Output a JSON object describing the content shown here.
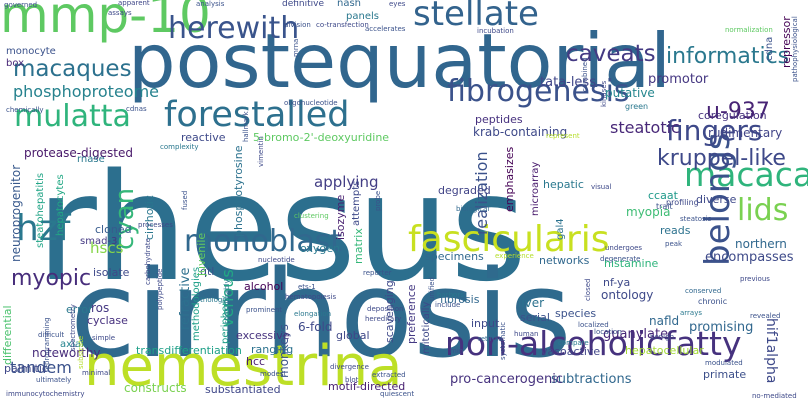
{
  "words": [
    {
      "text": "rhesus",
      "color": "#2c6f8e"
    },
    {
      "text": "cirrhosis",
      "color": "#2f6a8d"
    },
    {
      "text": "postequatorial",
      "color": "#31668e"
    },
    {
      "text": "nemestrina",
      "color": "#bddf26"
    },
    {
      "text": "non-alcoholicfatty",
      "color": "#46327e"
    },
    {
      "text": "mmp-10",
      "color": "#5ec962"
    },
    {
      "text": "fascicularis",
      "color": "#c8e020"
    },
    {
      "text": "forestalled",
      "color": "#2d708e"
    },
    {
      "text": "stellate",
      "color": "#33638d"
    },
    {
      "text": "macaca",
      "color": "#2fb47c"
    },
    {
      "text": "fibrogenesis",
      "color": "#3b528b"
    },
    {
      "text": "monoblast",
      "color": "#31688e"
    },
    {
      "text": "hzf",
      "color": "#2a788e"
    },
    {
      "text": "mulatta",
      "color": "#2fb47c"
    },
    {
      "text": "herewith",
      "color": "#3a548c"
    },
    {
      "text": "belongs",
      "color": "#3b528b"
    },
    {
      "text": "fingers",
      "color": "#3e4989"
    },
    {
      "text": "lids",
      "color": "#7ad151"
    },
    {
      "text": "macaques",
      "color": "#2c718e"
    },
    {
      "text": "cyan",
      "color": "#35b779"
    },
    {
      "text": "kruppel-like",
      "color": "#3e4989"
    },
    {
      "text": "informatics",
      "color": "#2a788e"
    },
    {
      "text": "caveats",
      "color": "#443a83"
    },
    {
      "text": "phosphoproteome",
      "color": "#26828e"
    },
    {
      "text": "u-937",
      "color": "#482475"
    },
    {
      "text": "myopic",
      "color": "#472d7b"
    },
    {
      "text": "venous",
      "color": "#22a884"
    },
    {
      "text": "hif1alpha",
      "color": "#3e4989"
    },
    {
      "text": "realization",
      "color": "#3b528b"
    },
    {
      "text": "steatotic",
      "color": "#482878"
    },
    {
      "text": "applying",
      "color": "#433e85"
    },
    {
      "text": "promotor",
      "color": "#453781"
    },
    {
      "text": "tata-less",
      "color": "#404688"
    },
    {
      "text": "putative",
      "color": "#24868e"
    },
    {
      "text": "peptides",
      "color": "#46307e"
    },
    {
      "text": "krab-containing",
      "color": "#3e4989"
    },
    {
      "text": "rudimentary",
      "color": "#414487"
    },
    {
      "text": "coregulation",
      "color": "#46327e"
    },
    {
      "text": "hscs",
      "color": "#86d549"
    },
    {
      "text": "refractive",
      "color": "#2d708e"
    },
    {
      "text": "isozyme",
      "color": "#481f70"
    },
    {
      "text": "ccaat",
      "color": "#1f9a8a"
    },
    {
      "text": "myopia",
      "color": "#3dbc74"
    },
    {
      "text": "reads",
      "color": "#2c728e"
    },
    {
      "text": "northern",
      "color": "#31688e"
    },
    {
      "text": "encompasses",
      "color": "#3e4a89"
    },
    {
      "text": "histamine",
      "color": "#2fb47c"
    },
    {
      "text": "tandem",
      "color": "#3b528b"
    },
    {
      "text": "guanylate",
      "color": "#482878"
    },
    {
      "text": "promising",
      "color": "#31678e"
    },
    {
      "text": "subtractions",
      "color": "#31688e"
    },
    {
      "text": "substantiated",
      "color": "#3f4788"
    },
    {
      "text": "motif-directed",
      "color": "#482071"
    },
    {
      "text": "pro-cancerogenic",
      "color": "#46327e"
    },
    {
      "text": "primate",
      "color": "#3c4f8a"
    },
    {
      "text": "protease-digested",
      "color": "#48186a"
    },
    {
      "text": "transdifferentiation",
      "color": "#1fa088"
    },
    {
      "text": "hepatocellular",
      "color": "#a5db36"
    },
    {
      "text": "vasoactive",
      "color": "#404588"
    },
    {
      "text": "constructs",
      "color": "#7ad151"
    },
    {
      "text": "noteworthy",
      "color": "#472c7a"
    },
    {
      "text": "palmitic",
      "color": "#3f4889"
    },
    {
      "text": "cyclase",
      "color": "#46307e"
    },
    {
      "text": "error",
      "color": "#2a788e"
    },
    {
      "text": "ros",
      "color": "#453882"
    },
    {
      "text": "differential",
      "color": "#4ac16d"
    },
    {
      "text": "axial",
      "color": "#25848e"
    },
    {
      "text": "monkeys",
      "color": "#3b528b"
    },
    {
      "text": "hcc",
      "color": "#481d6f"
    },
    {
      "text": "excessive",
      "color": "#46327e"
    },
    {
      "text": "6-fold",
      "color": "#3e4989"
    },
    {
      "text": "ranging",
      "color": "#2c728e"
    },
    {
      "text": "oxygen",
      "color": "#2a788e"
    },
    {
      "text": "alcohol",
      "color": "#440154"
    },
    {
      "text": "qtl",
      "color": "#3b528b"
    },
    {
      "text": "juvenile",
      "color": "#65cb5e"
    },
    {
      "text": "isolate",
      "color": "#3e4989"
    },
    {
      "text": "cloned",
      "color": "#375b8d"
    },
    {
      "text": "smad-3",
      "color": "#443983"
    },
    {
      "text": "cirrhotic",
      "color": "#2a778e"
    },
    {
      "text": "hepatocytes",
      "color": "#22a884"
    },
    {
      "text": "neuroprogenitor",
      "color": "#38598c"
    },
    {
      "text": "steatohepatitis",
      "color": "#20a486"
    },
    {
      "text": "5-bromo-2'-deoxyuridine",
      "color": "#5ec962"
    },
    {
      "text": "reactive",
      "color": "#3e4989"
    },
    {
      "text": "phosphotyrosine",
      "color": "#2c728e"
    },
    {
      "text": "attempts",
      "color": "#3e4989"
    },
    {
      "text": "degraded",
      "color": "#414487"
    },
    {
      "text": "hepatic",
      "color": "#2a788e"
    },
    {
      "text": "emphasizes",
      "color": "#440154"
    },
    {
      "text": "microarray",
      "color": "#481a6c"
    },
    {
      "text": "diverse",
      "color": "#3e4989"
    },
    {
      "text": "global",
      "color": "#3f4788"
    },
    {
      "text": "periphery",
      "color": "#1f9e89"
    },
    {
      "text": "input",
      "color": "#3e4989"
    },
    {
      "text": "serial",
      "color": "#3b528b"
    },
    {
      "text": "liver",
      "color": "#2c728e"
    },
    {
      "text": "species",
      "color": "#3b528b"
    },
    {
      "text": "nafld",
      "color": "#31688e"
    },
    {
      "text": "ontology",
      "color": "#3e4989"
    },
    {
      "text": "nf-ya",
      "color": "#3e4989"
    },
    {
      "text": "fibrosis",
      "color": "#31688e"
    },
    {
      "text": "networks",
      "color": "#31688e"
    },
    {
      "text": "specimens",
      "color": "#31688e"
    },
    {
      "text": "gal4",
      "color": "#2c728e"
    },
    {
      "text": "matrix",
      "color": "#35b779"
    },
    {
      "text": "preference",
      "color": "#443983"
    },
    {
      "text": "mitotically",
      "color": "#3e4989"
    },
    {
      "text": "scavenging",
      "color": "#3e4989"
    },
    {
      "text": "methodologies",
      "color": "#1fa088"
    },
    {
      "text": "monocyte",
      "color": "#3b528b"
    },
    {
      "text": "box",
      "color": "#482878"
    },
    {
      "text": "rnase",
      "color": "#2a788e"
    },
    {
      "text": "repressor",
      "color": "#440154"
    },
    {
      "text": "cdna",
      "color": "#3b528b"
    },
    {
      "text": "panels",
      "color": "#2a788e"
    },
    {
      "text": "nash",
      "color": "#31688e"
    },
    {
      "text": "definitive",
      "color": "#3e4989"
    },
    {
      "text": "apparent",
      "color": "#3f4788"
    },
    {
      "text": "governed",
      "color": "#3b528b"
    },
    {
      "text": "assays",
      "color": "#3e4989"
    },
    {
      "text": "green",
      "color": "#2a788e"
    },
    {
      "text": "profiling",
      "color": "#3e4989"
    },
    {
      "text": "chemically",
      "color": "#3b528b"
    },
    {
      "text": "cdnas",
      "color": "#3b528b"
    },
    {
      "text": "complexity",
      "color": "#2a788e"
    },
    {
      "text": "trait",
      "color": "#3b528b"
    },
    {
      "text": "visual",
      "color": "#3e4989"
    },
    {
      "text": "biological",
      "color": "#31688e"
    },
    {
      "text": "steatosis",
      "color": "#3b528b"
    },
    {
      "text": "peak",
      "color": "#3b528b"
    },
    {
      "text": "clustering",
      "color": "#5ec962"
    },
    {
      "text": "nucleotide",
      "color": "#3e4989"
    },
    {
      "text": "ets-1",
      "color": "#3b528b"
    },
    {
      "text": "hereditary",
      "color": "#3e4989"
    },
    {
      "text": "harbors",
      "color": "#2a788e"
    },
    {
      "text": "include",
      "color": "#3b528b"
    },
    {
      "text": "reporter",
      "color": "#3b528b"
    },
    {
      "text": "experience",
      "color": "#b5de2b"
    },
    {
      "text": "degenerate",
      "color": "#3b528b"
    },
    {
      "text": "undergoes",
      "color": "#3e4989"
    },
    {
      "text": "conserved",
      "color": "#31688e"
    },
    {
      "text": "previous",
      "color": "#3e4989"
    },
    {
      "text": "revealed",
      "color": "#3b528b"
    },
    {
      "text": "chronic",
      "color": "#3b528b"
    },
    {
      "text": "arrays",
      "color": "#2a788e"
    },
    {
      "text": "localized",
      "color": "#3b528b"
    },
    {
      "text": "human",
      "color": "#3e4989"
    },
    {
      "text": "retinas",
      "color": "#31688e"
    },
    {
      "text": "extracted",
      "color": "#3b528b"
    },
    {
      "text": "divergence",
      "color": "#3e4989"
    },
    {
      "text": "modest",
      "color": "#3b528b"
    },
    {
      "text": "elongation",
      "color": "#2a788e"
    },
    {
      "text": "deposition",
      "color": "#3e4989"
    },
    {
      "text": "prominent",
      "color": "#3b528b"
    },
    {
      "text": "orthologs",
      "color": "#2a788e"
    },
    {
      "text": "simple",
      "color": "#3e4989"
    },
    {
      "text": "difficult",
      "color": "#3b528b"
    },
    {
      "text": "minimal",
      "color": "#3e4989"
    },
    {
      "text": "immunocytochemistry",
      "color": "#3e4989"
    },
    {
      "text": "ultimately",
      "color": "#3b528b"
    },
    {
      "text": "quiescent",
      "color": "#3b528b"
    },
    {
      "text": "blot",
      "color": "#3e4989"
    },
    {
      "text": "modulated",
      "color": "#3b528b"
    },
    {
      "text": "benign",
      "color": "#3e4989"
    },
    {
      "text": "location",
      "color": "#3b528b"
    },
    {
      "text": "compare",
      "color": "#2a788e"
    },
    {
      "text": "min",
      "color": "#3b528b"
    },
    {
      "text": "pathophysiological",
      "color": "#3b528b"
    },
    {
      "text": "no-mediated",
      "color": "#3e4989"
    },
    {
      "text": "incubation",
      "color": "#3e4989"
    },
    {
      "text": "normalization",
      "color": "#5ec962"
    },
    {
      "text": "oligonucleotide",
      "color": "#3b528b"
    },
    {
      "text": "polypeptide",
      "color": "#3e4989"
    },
    {
      "text": "mrna",
      "color": "#3b528b"
    },
    {
      "text": "spectrometry",
      "color": "#3e4989"
    },
    {
      "text": "processes",
      "color": "#3e4989"
    },
    {
      "text": "represent",
      "color": "#b5de2b"
    },
    {
      "text": "fused",
      "color": "#3b528b"
    },
    {
      "text": "probe",
      "color": "#3b528b"
    },
    {
      "text": "closed",
      "color": "#3e4989"
    },
    {
      "text": "hallmark",
      "color": "#3b528b"
    },
    {
      "text": "considerably",
      "color": "#2a788e"
    },
    {
      "text": "hematopoiesis",
      "color": "#3e4989"
    },
    {
      "text": "reprogramming",
      "color": "#3b528b"
    },
    {
      "text": "analysis",
      "color": "#3b528b"
    },
    {
      "text": "eyes",
      "color": "#3e4989"
    },
    {
      "text": "division",
      "color": "#3b528b"
    },
    {
      "text": "co-transfection",
      "color": "#3e4989"
    },
    {
      "text": "accelerates",
      "color": "#3b528b"
    },
    {
      "text": "kinases",
      "color": "#3e4989"
    },
    {
      "text": "combined",
      "color": "#3b528b"
    },
    {
      "text": "carbohydrate",
      "color": "#3e4989"
    },
    {
      "text": "substrate",
      "color": "#b5de2b"
    },
    {
      "text": "systematic",
      "color": "#3b528b"
    },
    {
      "text": "vimentin",
      "color": "#3e4989"
    },
    {
      "text": "unified",
      "color": "#3b528b"
    }
  ]
}
